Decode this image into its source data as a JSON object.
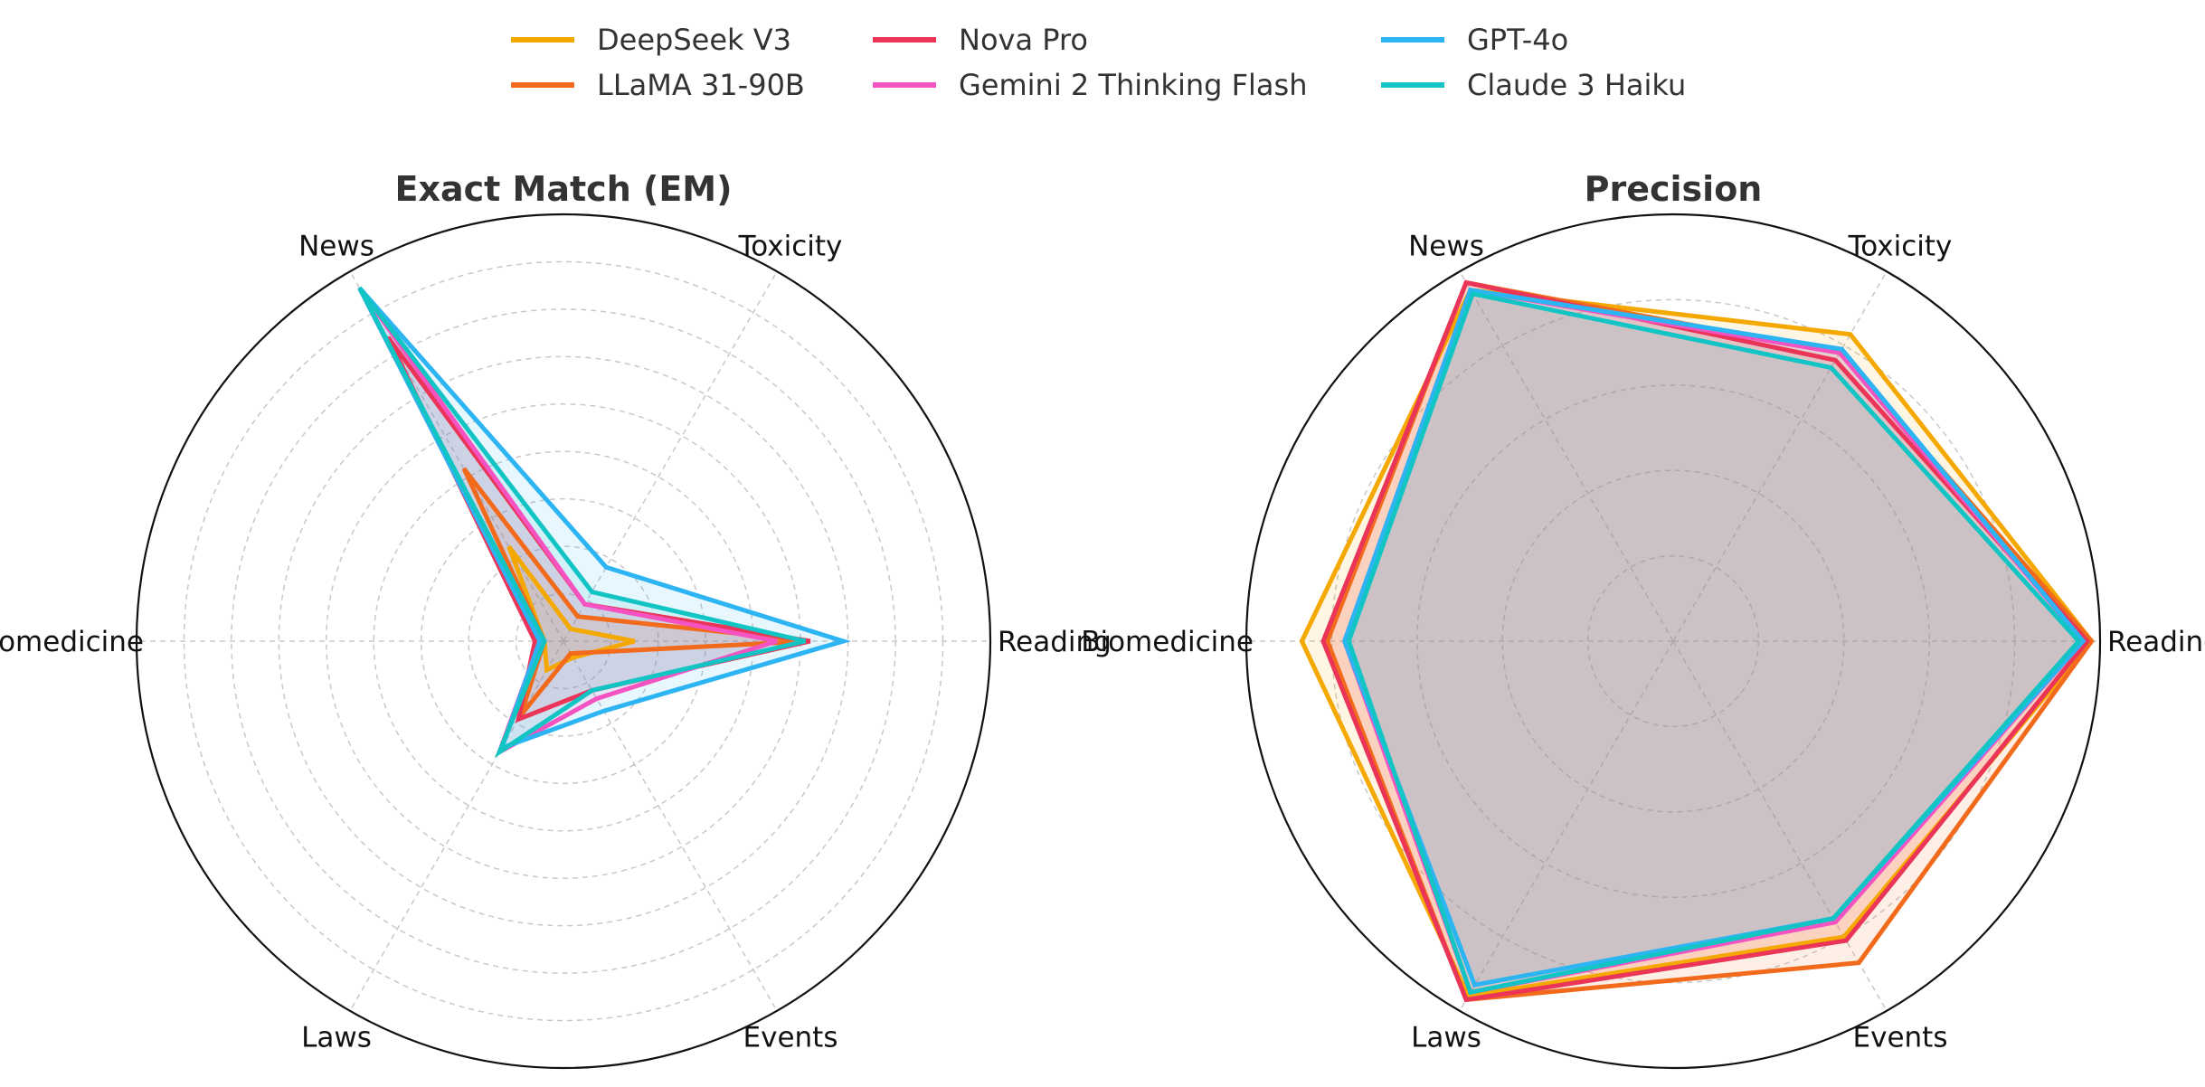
{
  "chart_data": [
    {
      "type": "radar",
      "title": "Exact Match (EM)",
      "axes": [
        "Reading",
        "Toxicity",
        "News",
        "Biomedicine",
        "Laws",
        "Events"
      ],
      "rmax": 0.9,
      "grid_step": 0.1,
      "grid": true,
      "series": [
        {
          "name": "DeepSeek V3",
          "values": [
            0.15,
            0.03,
            0.23,
            0.04,
            0.07,
            0.04
          ]
        },
        {
          "name": "LLaMA 31-90B",
          "values": [
            0.52,
            0.06,
            0.42,
            0.04,
            0.18,
            0.03
          ]
        },
        {
          "name": "Nova Pro",
          "values": [
            0.52,
            0.09,
            0.74,
            0.06,
            0.19,
            0.12
          ]
        },
        {
          "name": "Gemini 2 Thinking Flash",
          "values": [
            0.45,
            0.09,
            0.86,
            0.05,
            0.27,
            0.14
          ]
        },
        {
          "name": "GPT-4o",
          "values": [
            0.59,
            0.18,
            0.86,
            0.05,
            0.26,
            0.17
          ]
        },
        {
          "name": "Claude 3 Haiku",
          "values": [
            0.51,
            0.12,
            0.86,
            0.04,
            0.27,
            0.12
          ]
        }
      ]
    },
    {
      "type": "radar",
      "title": "Precision",
      "axes": [
        "Reading",
        "Toxicity",
        "News",
        "Biomedicine",
        "Laws",
        "Events"
      ],
      "rmax": 1.0,
      "grid_step": 0.2,
      "grid": true,
      "series": [
        {
          "name": "DeepSeek V3",
          "values": [
            0.98,
            0.83,
            0.95,
            0.87,
            0.96,
            0.8
          ]
        },
        {
          "name": "LLaMA 31-90B",
          "values": [
            0.98,
            0.78,
            0.97,
            0.81,
            0.97,
            0.87
          ]
        },
        {
          "name": "Nova Pro",
          "values": [
            0.97,
            0.76,
            0.97,
            0.82,
            0.97,
            0.81
          ]
        },
        {
          "name": "Gemini 2 Thinking Flash",
          "values": [
            0.96,
            0.78,
            0.95,
            0.77,
            0.95,
            0.76
          ]
        },
        {
          "name": "GPT-4o",
          "values": [
            0.96,
            0.79,
            0.95,
            0.77,
            0.93,
            0.75
          ]
        },
        {
          "name": "Claude 3 Haiku",
          "values": [
            0.95,
            0.74,
            0.94,
            0.76,
            0.95,
            0.75
          ]
        }
      ]
    }
  ],
  "legend": {
    "placement": "top-center",
    "entries": [
      {
        "name": "DeepSeek V3",
        "color": "#f5a800"
      },
      {
        "name": "LLaMA 31-90B",
        "color": "#f26b1d"
      },
      {
        "name": "Nova Pro",
        "color": "#ea3458"
      },
      {
        "name": "Gemini 2 Thinking Flash",
        "color": "#f453c1"
      },
      {
        "name": "GPT-4o",
        "color": "#2db4f2"
      },
      {
        "name": "Claude 3 Haiku",
        "color": "#13c4c4"
      }
    ]
  }
}
